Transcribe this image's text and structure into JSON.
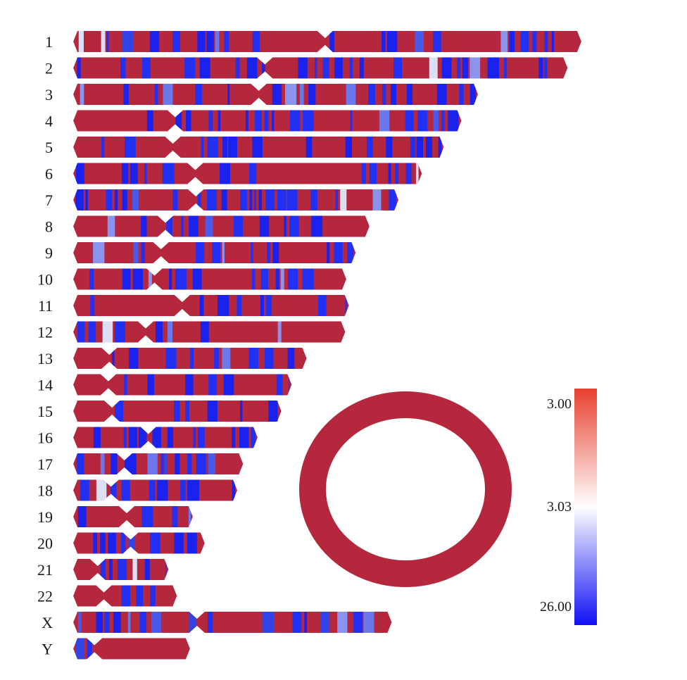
{
  "chart_data": {
    "type": "heatmap",
    "variant": "chromosome-ideogram",
    "chromosomes": [
      {
        "label": "1",
        "length": 248.96,
        "centromere": 123.4
      },
      {
        "label": "2",
        "length": 242.19,
        "centromere": 93.9
      },
      {
        "label": "3",
        "length": 198.3,
        "centromere": 90.9
      },
      {
        "label": "4",
        "length": 190.21,
        "centromere": 50.0
      },
      {
        "label": "5",
        "length": 181.54,
        "centromere": 48.8
      },
      {
        "label": "6",
        "length": 170.81,
        "centromere": 59.8
      },
      {
        "label": "7",
        "length": 159.35,
        "centromere": 60.1
      },
      {
        "label": "8",
        "length": 145.14,
        "centromere": 45.2
      },
      {
        "label": "9",
        "length": 138.39,
        "centromere": 43.0
      },
      {
        "label": "10",
        "length": 133.8,
        "centromere": 39.8
      },
      {
        "label": "11",
        "length": 135.09,
        "centromere": 53.4
      },
      {
        "label": "12",
        "length": 133.28,
        "centromere": 35.5
      },
      {
        "label": "13",
        "length": 114.36,
        "centromere": 17.7
      },
      {
        "label": "14",
        "length": 107.04,
        "centromere": 17.2
      },
      {
        "label": "15",
        "length": 101.99,
        "centromere": 19.0
      },
      {
        "label": "16",
        "length": 90.34,
        "centromere": 36.8
      },
      {
        "label": "17",
        "length": 83.26,
        "centromere": 25.1
      },
      {
        "label": "18",
        "length": 80.37,
        "centromere": 18.5
      },
      {
        "label": "19",
        "length": 58.62,
        "centromere": 26.2
      },
      {
        "label": "20",
        "length": 64.44,
        "centromere": 28.1
      },
      {
        "label": "21",
        "length": 46.71,
        "centromere": 12.0
      },
      {
        "label": "22",
        "length": 50.82,
        "centromere": 15.0
      },
      {
        "label": "X",
        "length": 156.04,
        "centromere": 60.6
      },
      {
        "label": "Y",
        "length": 57.23,
        "centromere": 10.4
      }
    ],
    "circular_element": {
      "values": [
        3.0
      ]
    },
    "colorscale": {
      "stops": [
        {
          "value": 3.0,
          "color": "#e8402e"
        },
        {
          "value": 3.03,
          "color": "#ffffff"
        },
        {
          "value": 26.0,
          "color": "#1010f5"
        }
      ],
      "base_color": "#b5273d",
      "tick_labels": [
        "3.00",
        "3.03",
        "26.00"
      ]
    },
    "legend": "bottom-right",
    "grid": false
  }
}
